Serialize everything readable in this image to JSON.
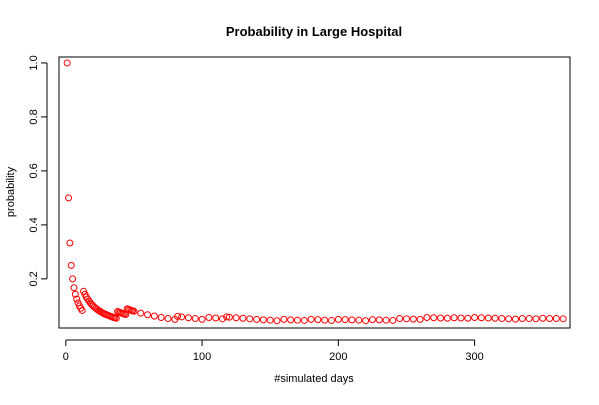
{
  "chart_data": {
    "type": "scatter",
    "title": "Probability in Large Hospital",
    "xlabel": "#simulated days",
    "ylabel": "probability",
    "xlim": [
      -5,
      370
    ],
    "ylim": [
      0.018,
      1.022
    ],
    "x_ticks": [
      0,
      100,
      200,
      300
    ],
    "y_ticks": [
      0.2,
      0.4,
      0.6,
      0.8,
      1.0
    ],
    "x_tick_labels": [
      "0",
      "100",
      "200",
      "300"
    ],
    "y_tick_labels": [
      "0.2",
      "0.4",
      "0.6",
      "0.8",
      "1.0"
    ],
    "grid": false,
    "marker": "open-circle",
    "marker_color": "#ff0000",
    "series": [
      {
        "x": [
          1,
          2,
          3,
          4,
          5,
          6,
          7,
          8,
          9,
          10,
          11,
          12,
          13,
          14,
          15,
          16,
          17,
          18,
          19,
          20,
          21,
          22,
          23,
          24,
          25,
          26,
          27,
          28,
          29,
          30,
          31,
          32,
          33,
          34,
          35,
          36,
          37,
          38,
          39,
          40,
          41,
          42,
          43,
          44,
          45,
          46,
          47,
          48,
          49,
          50,
          55,
          60,
          65,
          70,
          75,
          80,
          82,
          85,
          90,
          95,
          100,
          105,
          110,
          115,
          118,
          120,
          125,
          130,
          135,
          140,
          145,
          150,
          155,
          160,
          165,
          170,
          175,
          180,
          185,
          190,
          195,
          200,
          205,
          210,
          215,
          220,
          225,
          230,
          235,
          240,
          245,
          250,
          255,
          260,
          265,
          270,
          275,
          280,
          285,
          290,
          295,
          300,
          305,
          310,
          315,
          320,
          325,
          330,
          335,
          340,
          345,
          350,
          355,
          360,
          365
        ],
        "y": [
          1.0,
          0.5,
          0.333,
          0.25,
          0.2,
          0.167,
          0.143,
          0.125,
          0.111,
          0.1,
          0.091,
          0.083,
          0.154,
          0.143,
          0.133,
          0.125,
          0.118,
          0.111,
          0.105,
          0.1,
          0.095,
          0.091,
          0.087,
          0.083,
          0.08,
          0.077,
          0.074,
          0.071,
          0.069,
          0.067,
          0.065,
          0.063,
          0.061,
          0.059,
          0.057,
          0.056,
          0.054,
          0.079,
          0.077,
          0.075,
          0.073,
          0.071,
          0.07,
          0.068,
          0.089,
          0.087,
          0.085,
          0.083,
          0.082,
          0.08,
          0.073,
          0.067,
          0.062,
          0.057,
          0.053,
          0.05,
          0.061,
          0.059,
          0.056,
          0.053,
          0.05,
          0.057,
          0.055,
          0.052,
          0.059,
          0.058,
          0.056,
          0.054,
          0.052,
          0.05,
          0.048,
          0.047,
          0.045,
          0.05,
          0.048,
          0.047,
          0.046,
          0.05,
          0.049,
          0.047,
          0.046,
          0.05,
          0.049,
          0.048,
          0.047,
          0.045,
          0.049,
          0.048,
          0.047,
          0.046,
          0.053,
          0.052,
          0.051,
          0.05,
          0.057,
          0.056,
          0.055,
          0.054,
          0.056,
          0.055,
          0.054,
          0.057,
          0.056,
          0.055,
          0.054,
          0.053,
          0.052,
          0.051,
          0.053,
          0.053,
          0.052,
          0.054,
          0.053,
          0.053,
          0.052
        ]
      }
    ]
  }
}
